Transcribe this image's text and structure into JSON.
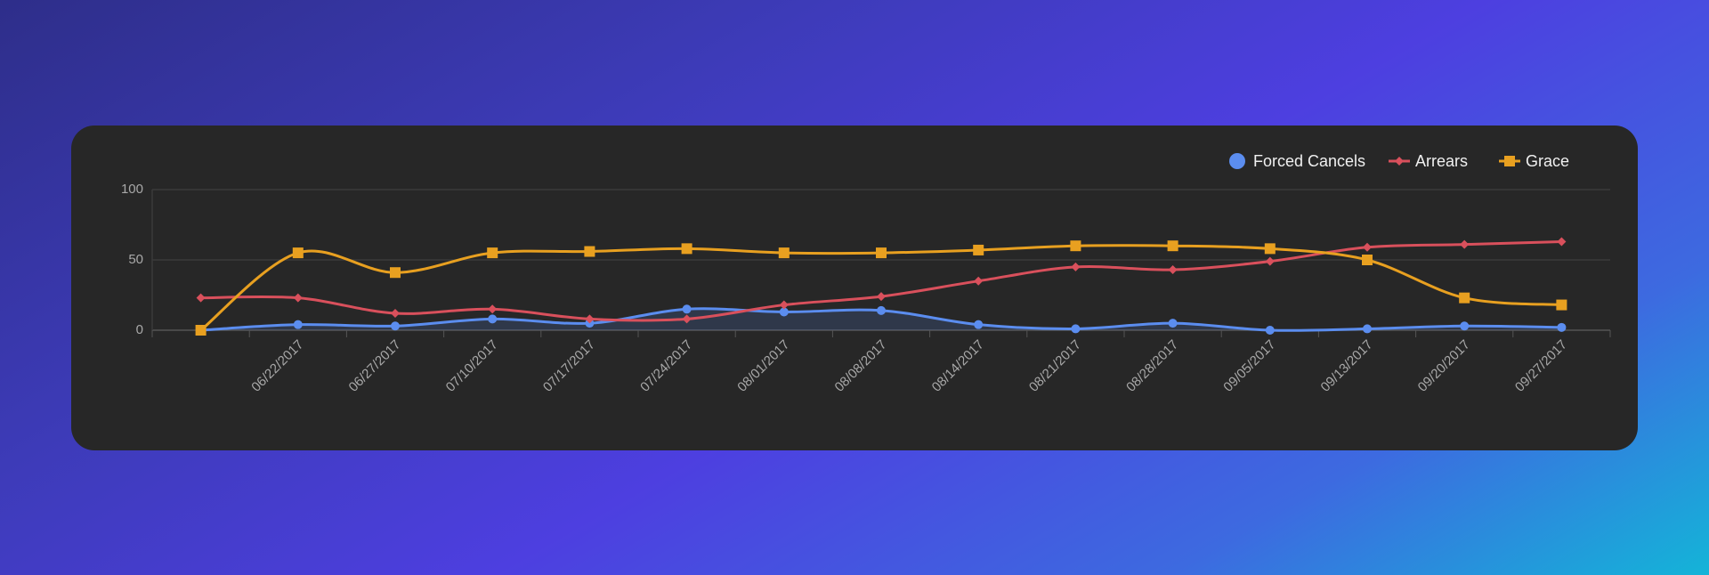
{
  "chart_data": {
    "type": "line",
    "categories": [
      null,
      "06/22/2017",
      "06/27/2017",
      "07/10/2017",
      "07/17/2017",
      "07/24/2017",
      "08/01/2017",
      "08/08/2017",
      "08/14/2017",
      "08/21/2017",
      "08/28/2017",
      "09/05/2017",
      "09/13/2017",
      "09/20/2017",
      "09/27/2017"
    ],
    "series": [
      {
        "name": "Forced Cancels",
        "color": "#5b8def",
        "values": [
          0,
          4,
          3,
          8,
          5,
          15,
          13,
          14,
          4,
          1,
          5,
          0,
          1,
          3,
          2
        ]
      },
      {
        "name": "Arrears",
        "color": "#d9505c",
        "values": [
          23,
          23,
          12,
          15,
          8,
          8,
          18,
          24,
          35,
          45,
          43,
          49,
          59,
          61,
          63
        ]
      },
      {
        "name": "Grace",
        "color": "#e8a020",
        "values": [
          0,
          55,
          41,
          55,
          56,
          58,
          55,
          55,
          57,
          60,
          60,
          58,
          50,
          23,
          18
        ]
      }
    ],
    "ylim": [
      0,
      100
    ],
    "yticks": [
      0,
      50,
      100
    ],
    "grid": true,
    "legend": "top-right"
  }
}
